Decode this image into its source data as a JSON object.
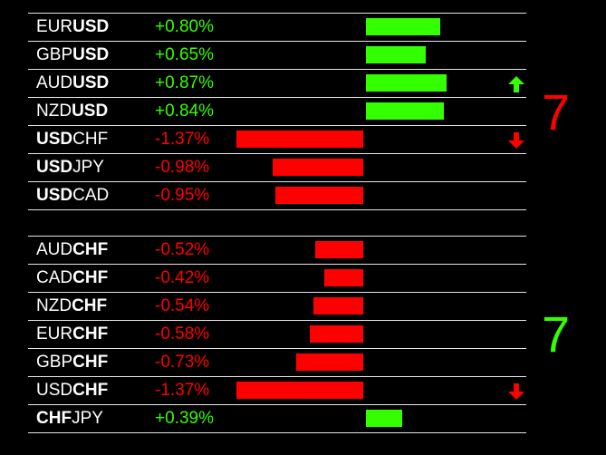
{
  "colors": {
    "up": "#33ff00",
    "down": "#ff0000",
    "text": "#ffffff",
    "line": "#e6e6e6"
  },
  "usd_group": {
    "count": "7",
    "count_color": "#ff0000",
    "rows": [
      {
        "base": "EUR",
        "quote": "USD",
        "bold": "quote",
        "change": "+0.80%",
        "value": 0.8,
        "arrow": ""
      },
      {
        "base": "GBP",
        "quote": "USD",
        "bold": "quote",
        "change": "+0.65%",
        "value": 0.65,
        "arrow": ""
      },
      {
        "base": "AUD",
        "quote": "USD",
        "bold": "quote",
        "change": "+0.87%",
        "value": 0.87,
        "arrow": "up"
      },
      {
        "base": "NZD",
        "quote": "USD",
        "bold": "quote",
        "change": "+0.84%",
        "value": 0.84,
        "arrow": ""
      },
      {
        "base": "USD",
        "quote": "CHF",
        "bold": "base",
        "change": "-1.37%",
        "value": -1.37,
        "arrow": "down"
      },
      {
        "base": "USD",
        "quote": "JPY",
        "bold": "base",
        "change": "-0.98%",
        "value": -0.98,
        "arrow": ""
      },
      {
        "base": "USD",
        "quote": "CAD",
        "bold": "base",
        "change": "-0.95%",
        "value": -0.95,
        "arrow": ""
      }
    ]
  },
  "chf_group": {
    "count": "7",
    "count_color": "#33ff00",
    "rows": [
      {
        "base": "AUD",
        "quote": "CHF",
        "bold": "quote",
        "change": "-0.52%",
        "value": -0.52,
        "arrow": ""
      },
      {
        "base": "CAD",
        "quote": "CHF",
        "bold": "quote",
        "change": "-0.42%",
        "value": -0.42,
        "arrow": ""
      },
      {
        "base": "NZD",
        "quote": "CHF",
        "bold": "quote",
        "change": "-0.54%",
        "value": -0.54,
        "arrow": ""
      },
      {
        "base": "EUR",
        "quote": "CHF",
        "bold": "quote",
        "change": "-0.58%",
        "value": -0.58,
        "arrow": ""
      },
      {
        "base": "GBP",
        "quote": "CHF",
        "bold": "quote",
        "change": "-0.73%",
        "value": -0.73,
        "arrow": ""
      },
      {
        "base": "USD",
        "quote": "CHF",
        "bold": "quote",
        "change": "-1.37%",
        "value": -1.37,
        "arrow": "down"
      },
      {
        "base": "CHF",
        "quote": "JPY",
        "bold": "base",
        "change": "+0.39%",
        "value": 0.39,
        "arrow": ""
      }
    ]
  }
}
